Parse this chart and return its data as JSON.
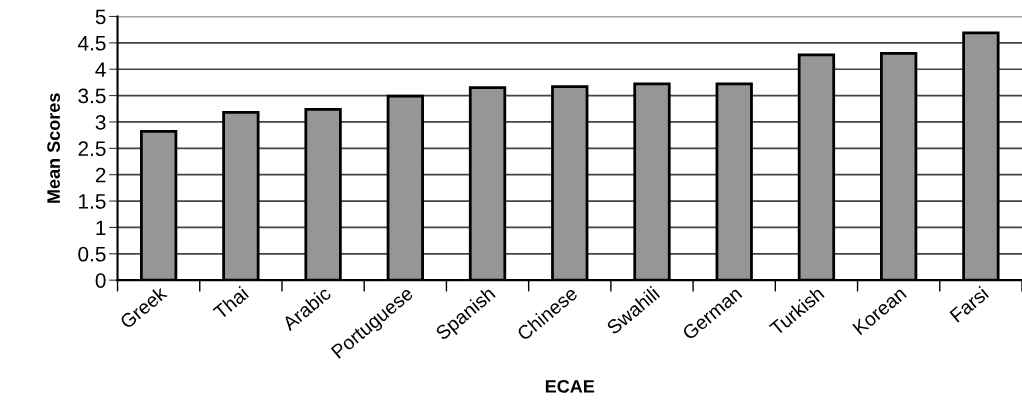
{
  "chart_data": {
    "type": "bar",
    "xlabel": "ECAE",
    "ylabel": "Mean Scores",
    "categories": [
      "Greek",
      "Thai",
      "Arabic",
      "Portuguese",
      "Spanish",
      "Chinese",
      "Swahili",
      "German",
      "Turkish",
      "Korean",
      "Farsi"
    ],
    "values": [
      2.82,
      3.18,
      3.24,
      3.49,
      3.65,
      3.67,
      3.72,
      3.72,
      4.27,
      4.3,
      4.69
    ],
    "color": "#969696",
    "ylim": [
      0,
      5
    ],
    "yticks": [
      0,
      0.5,
      1,
      1.5,
      2,
      2.5,
      3,
      3.5,
      4,
      4.5,
      5
    ],
    "grid": "y"
  }
}
